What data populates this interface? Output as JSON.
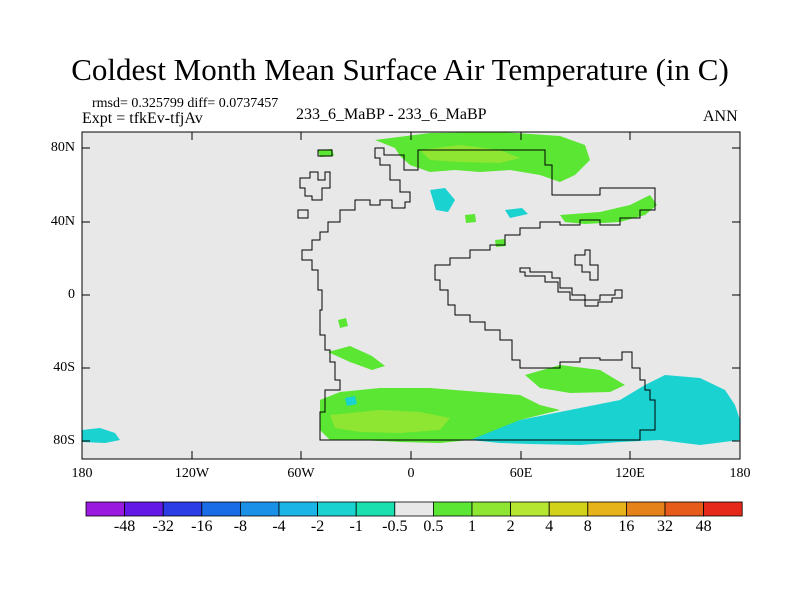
{
  "header": {
    "title": "Coldest Month Mean Surface Air Temperature (in C)",
    "stats": "rmsd= 0.325799  diff= 0.0737457",
    "experiment": "Expt = tfkEv-tfjAv",
    "center_label": "233_6_MaBP - 233_6_MaBP",
    "season": "ANN"
  },
  "map": {
    "lat_labels": [
      "80N",
      "40N",
      "0",
      "40S",
      "80S"
    ],
    "lon_labels": [
      "180",
      "120W",
      "60W",
      "0",
      "60E",
      "120E",
      "180"
    ],
    "background_color": "#e8e8e8",
    "coastline_color": "#000000"
  },
  "colorbar": {
    "labels": [
      "-48",
      "-32",
      "-16",
      "-8",
      "-4",
      "-2",
      "-1",
      "-0.5",
      "0.5",
      "1",
      "2",
      "4",
      "8",
      "16",
      "32",
      "48"
    ],
    "colors": [
      "#9a1ae0",
      "#6419e6",
      "#2d3de6",
      "#1a6ce6",
      "#1a90e6",
      "#1ab4e6",
      "#1ad2d0",
      "#1ae0b0",
      "#e8e8e8",
      "#5ae632",
      "#8ee632",
      "#b4e632",
      "#d2d21a",
      "#e6b41a",
      "#e6821a",
      "#e65a1a",
      "#e6281a"
    ]
  }
}
